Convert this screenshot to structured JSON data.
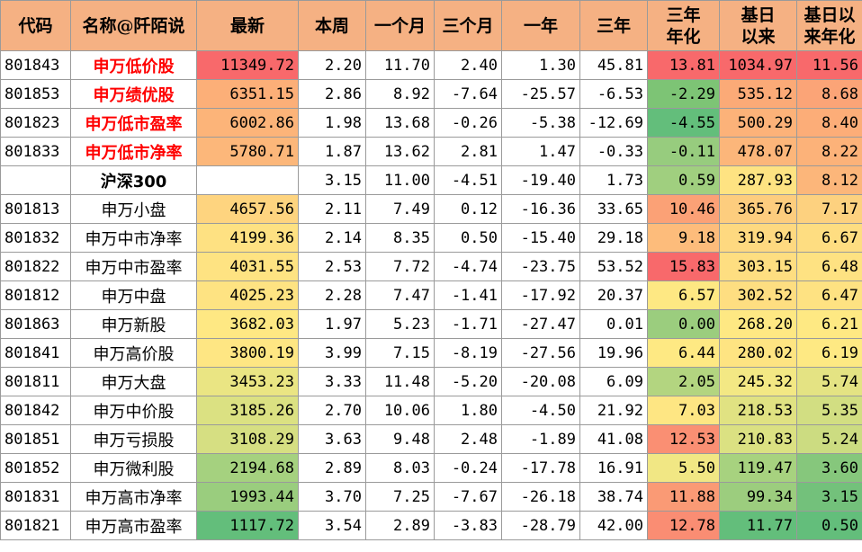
{
  "headers": [
    "代码",
    "名称@阡陌说",
    "最新",
    "本周",
    "一个月",
    "三个月",
    "一年",
    "三年",
    "三年\n年化",
    "基日\n以来",
    "基日以\n来年化"
  ],
  "rows": [
    {
      "code": "801843",
      "name": "申万低价股",
      "name_style": "red",
      "latest": "11349.72",
      "week": "2.20",
      "m1": "11.70",
      "m3": "2.40",
      "y1": "1.30",
      "y3": "45.81",
      "y3a": "13.81",
      "since": "1034.97",
      "sincea": "11.56",
      "c_latest": "#f8696b",
      "c_y3a": "#f8696b",
      "c_since": "#f8696b",
      "c_sincea": "#f8696b"
    },
    {
      "code": "801853",
      "name": "申万绩优股",
      "name_style": "red",
      "latest": "6351.15",
      "week": "2.86",
      "m1": "8.92",
      "m3": "-7.64",
      "y1": "-25.57",
      "y3": "-6.53",
      "y3a": "-2.29",
      "since": "535.12",
      "sincea": "8.68",
      "c_latest": "#fcaf78",
      "c_y3a": "#7dc475",
      "c_since": "#fbaa77",
      "c_sincea": "#fba477"
    },
    {
      "code": "801823",
      "name": "申万低市盈率",
      "name_style": "red",
      "latest": "6002.86",
      "week": "1.98",
      "m1": "13.68",
      "m3": "-0.26",
      "y1": "-5.38",
      "y3": "-12.69",
      "y3a": "-4.55",
      "since": "500.29",
      "sincea": "8.40",
      "c_latest": "#fcb479",
      "c_y3a": "#63be7b",
      "c_since": "#fcb279",
      "c_sincea": "#fcad78"
    },
    {
      "code": "801833",
      "name": "申万低市净率",
      "name_style": "red",
      "latest": "5780.71",
      "week": "1.87",
      "m1": "13.62",
      "m3": "2.81",
      "y1": "1.47",
      "y3": "-0.33",
      "y3a": "-0.11",
      "since": "478.07",
      "sincea": "8.22",
      "c_latest": "#fcb77a",
      "c_y3a": "#97cc7e",
      "c_since": "#fcb67a",
      "c_sincea": "#fcb279"
    },
    {
      "code": "",
      "name": "沪深300",
      "name_style": "bold",
      "latest": "",
      "week": "3.15",
      "m1": "11.00",
      "m3": "-4.51",
      "y1": "-19.40",
      "y3": "1.73",
      "y3a": "0.59",
      "since": "287.93",
      "sincea": "8.12",
      "c_latest": "#ffffff",
      "c_y3a": "#a0cf7f",
      "c_since": "#fee382",
      "c_sincea": "#fcb67a"
    },
    {
      "code": "801813",
      "name": "申万小盘",
      "name_style": "",
      "latest": "4657.56",
      "week": "2.11",
      "m1": "7.49",
      "m3": "0.12",
      "y1": "-16.36",
      "y3": "33.65",
      "y3a": "10.46",
      "since": "365.76",
      "sincea": "7.17",
      "c_latest": "#fed47f",
      "c_y3a": "#fba176",
      "c_since": "#fdcd7e",
      "c_sincea": "#fdd17f"
    },
    {
      "code": "801832",
      "name": "申万中市净率",
      "name_style": "",
      "latest": "4199.36",
      "week": "2.14",
      "m1": "8.35",
      "m3": "0.50",
      "y1": "-15.40",
      "y3": "29.18",
      "y3a": "9.18",
      "since": "319.94",
      "sincea": "6.67",
      "c_latest": "#fee182",
      "c_y3a": "#fdbc7b",
      "c_since": "#fed980",
      "c_sincea": "#fedd81"
    },
    {
      "code": "801822",
      "name": "申万中市盈率",
      "name_style": "",
      "latest": "4031.55",
      "week": "2.53",
      "m1": "7.72",
      "m3": "-4.74",
      "y1": "-23.75",
      "y3": "53.52",
      "y3a": "15.83",
      "since": "303.15",
      "sincea": "6.48",
      "c_latest": "#fee382",
      "c_y3a": "#f8696b",
      "c_since": "#fede81",
      "c_sincea": "#fee282"
    },
    {
      "code": "801812",
      "name": "申万中盘",
      "name_style": "",
      "latest": "4025.23",
      "week": "2.28",
      "m1": "7.47",
      "m3": "-1.41",
      "y1": "-17.92",
      "y3": "20.37",
      "y3a": "6.57",
      "since": "302.52",
      "sincea": "6.47",
      "c_latest": "#fee382",
      "c_y3a": "#fee883",
      "c_since": "#fede81",
      "c_sincea": "#fee282"
    },
    {
      "code": "801863",
      "name": "申万新股",
      "name_style": "",
      "latest": "3682.03",
      "week": "1.97",
      "m1": "5.23",
      "m3": "-1.71",
      "y1": "-27.47",
      "y3": "0.01",
      "y3a": "0.00",
      "since": "268.20",
      "sincea": "6.21",
      "c_latest": "#fee883",
      "c_y3a": "#9bcd7e",
      "c_since": "#fee883",
      "c_sincea": "#fee983"
    },
    {
      "code": "801841",
      "name": "申万高价股",
      "name_style": "",
      "latest": "3800.19",
      "week": "3.99",
      "m1": "7.15",
      "m3": "-8.19",
      "y1": "-27.56",
      "y3": "19.96",
      "y3a": "6.44",
      "since": "280.02",
      "sincea": "6.19",
      "c_latest": "#fee683",
      "c_y3a": "#fee983",
      "c_since": "#fee482",
      "c_sincea": "#fee983"
    },
    {
      "code": "801811",
      "name": "申万大盘",
      "name_style": "",
      "latest": "3453.23",
      "week": "3.33",
      "m1": "11.48",
      "m3": "-5.20",
      "y1": "-20.08",
      "y3": "6.09",
      "y3a": "2.05",
      "since": "245.32",
      "sincea": "5.74",
      "c_latest": "#eae583",
      "c_y3a": "#b3d580",
      "c_since": "#f3e884",
      "c_sincea": "#e4e383"
    },
    {
      "code": "801842",
      "name": "申万中价股",
      "name_style": "",
      "latest": "3185.26",
      "week": "2.70",
      "m1": "10.06",
      "m3": "1.80",
      "y1": "-4.50",
      "y3": "21.92",
      "y3a": "7.03",
      "since": "218.53",
      "sincea": "5.35",
      "c_latest": "#dbe182",
      "c_y3a": "#fee683",
      "c_since": "#e0e282",
      "c_sincea": "#d2de82"
    },
    {
      "code": "801851",
      "name": "申万亏损股",
      "name_style": "",
      "latest": "3108.29",
      "week": "3.63",
      "m1": "9.48",
      "m3": "2.48",
      "y1": "-1.89",
      "y3": "41.08",
      "y3a": "12.53",
      "since": "210.83",
      "sincea": "5.24",
      "c_latest": "#d6df82",
      "c_y3a": "#fa8f73",
      "c_since": "#dbe182",
      "c_sincea": "#ccdc81"
    },
    {
      "code": "801852",
      "name": "申万微利股",
      "name_style": "",
      "latest": "2194.68",
      "week": "2.89",
      "m1": "8.03",
      "m3": "-0.24",
      "y1": "-17.78",
      "y3": "16.91",
      "y3a": "5.50",
      "since": "119.47",
      "sincea": "3.60",
      "c_latest": "#a5d17f",
      "c_y3a": "#f1e784",
      "c_since": "#a7d27f",
      "c_sincea": "#86c77c"
    },
    {
      "code": "801831",
      "name": "申万高市净率",
      "name_style": "",
      "latest": "1993.44",
      "week": "3.70",
      "m1": "7.25",
      "m3": "-7.67",
      "y1": "-26.18",
      "y3": "38.74",
      "y3a": "11.88",
      "since": "99.34",
      "sincea": "3.15",
      "c_latest": "#9acd7e",
      "c_y3a": "#fa9a75",
      "c_since": "#9ccd7e",
      "c_sincea": "#73c17b"
    },
    {
      "code": "801821",
      "name": "申万高市盈率",
      "name_style": "",
      "latest": "1117.72",
      "week": "3.54",
      "m1": "2.89",
      "m3": "-3.83",
      "y1": "-28.79",
      "y3": "42.00",
      "y3a": "12.78",
      "since": "11.77",
      "sincea": "0.50",
      "c_latest": "#63be7b",
      "c_y3a": "#fa8d73",
      "c_since": "#63be7b",
      "c_sincea": "#63be7b"
    }
  ]
}
